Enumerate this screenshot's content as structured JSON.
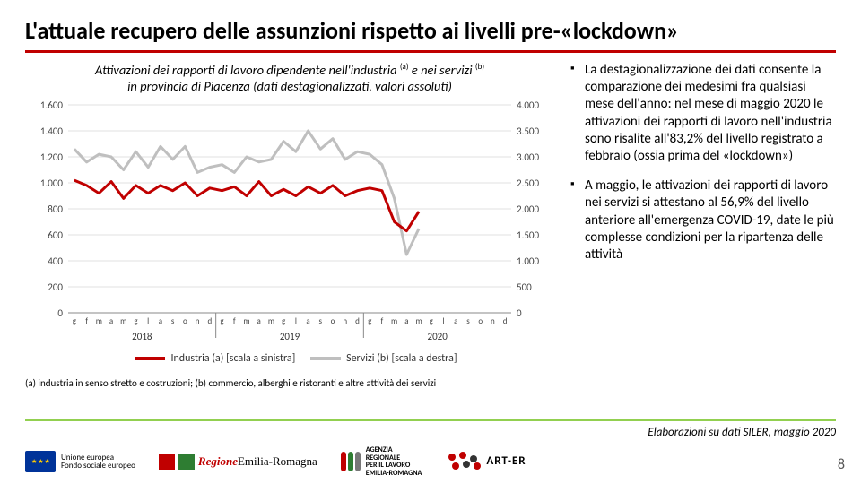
{
  "title": "L'attuale recupero delle assunzioni rispetto ai livelli pre-«lockdown»",
  "chart": {
    "type": "line-dual-axis",
    "title_line1_pre": "Attivazioni dei rapporti di lavoro dipendente nell'industria ",
    "title_line1_mid": " e nei servizi ",
    "title_sup_a": "(a)",
    "title_sup_b": "(b)",
    "title_line2": "in provincia di Piacenza (dati destagionalizzati, valori assoluti)",
    "months": [
      "g",
      "f",
      "m",
      "a",
      "m",
      "g",
      "l",
      "a",
      "s",
      "o",
      "n",
      "d",
      "g",
      "f",
      "m",
      "a",
      "m",
      "g",
      "l",
      "a",
      "s",
      "o",
      "n",
      "d",
      "g",
      "f",
      "m",
      "a",
      "m",
      "g",
      "l",
      "a",
      "s",
      "o",
      "n",
      "d"
    ],
    "year_labels": [
      "2018",
      "2019",
      "2020"
    ],
    "series_a": {
      "name": "Industria (a) [scala a sinistra]",
      "color": "#c00000",
      "line_width": 3,
      "values": [
        1020,
        980,
        920,
        1010,
        880,
        980,
        920,
        980,
        940,
        1000,
        900,
        960,
        940,
        970,
        900,
        1010,
        900,
        950,
        900,
        970,
        920,
        980,
        900,
        940,
        960,
        940,
        700,
        630,
        780,
        null,
        null,
        null,
        null,
        null,
        null,
        null
      ],
      "axis": {
        "min": 0,
        "max": 1600,
        "step": 200
      }
    },
    "series_b": {
      "name": "Servizi (b) [scala a destra]",
      "color": "#bfbfbf",
      "line_width": 3,
      "values": [
        3150,
        2900,
        3050,
        3000,
        2750,
        3100,
        2800,
        3200,
        2950,
        3200,
        2700,
        2800,
        2850,
        2700,
        3000,
        2900,
        2950,
        3300,
        3100,
        3500,
        3150,
        3350,
        2950,
        3100,
        3050,
        2850,
        2200,
        1120,
        1620,
        null,
        null,
        null,
        null,
        null,
        null,
        null
      ],
      "axis": {
        "min": 0,
        "max": 4000,
        "step": 500
      }
    },
    "grid_color": "#e0e0e0",
    "axis_text_color": "#444444",
    "background": "#ffffff"
  },
  "note": "(a) industria in senso stretto e costruzioni; (b) commercio, alberghi e ristoranti e altre attività dei servizi",
  "bullets": [
    "La destagionalizzazione dei dati consente la comparazione dei medesimi fra qualsiasi mese dell'anno: nel mese di maggio 2020 le attivazioni dei rapporti di lavoro nell'industria sono risalite all'83,2% del livello registrato a febbraio (ossia prima del «lockdown»)",
    "A maggio, le attivazioni dei rapporti di lavoro nei servizi si attestano al 56,9% del livello anteriore all'emergenza COVID-19, date le più complesse condizioni per la ripartenza delle attività"
  ],
  "source": "Elaborazioni su dati SILER, maggio 2020",
  "page": "8",
  "logos": {
    "eu": {
      "line1": "Unione europea",
      "line2": "Fondo sociale europeo"
    },
    "rer": {
      "region": "Regione",
      "name": "Emilia-Romagna",
      "sq1": "#c00000",
      "sq2": "#2e7d32"
    },
    "agenzia": {
      "line1": "AGENZIA",
      "line2": "REGIONALE",
      "line3": "PER IL LAVORO",
      "line4": "EMILIA-ROMAGNA",
      "c1": "#c00000",
      "c2": "#2e7d32",
      "c3": "#777777"
    },
    "art": {
      "text": "ART-ER",
      "dots": [
        "#c00000",
        "#c00000",
        "#333333",
        "#c00000",
        "#333333",
        "#c00000"
      ]
    }
  },
  "colors": {
    "rule_red": "#c00000",
    "rule_green": "#92d050"
  }
}
